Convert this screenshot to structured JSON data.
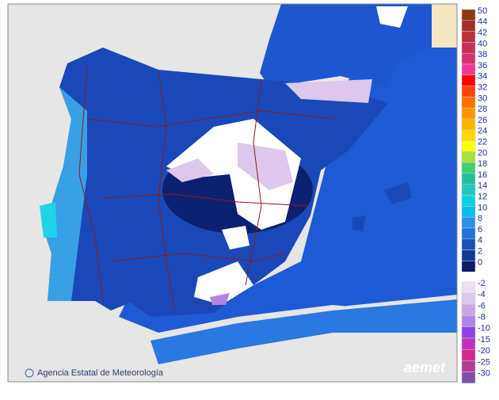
{
  "map": {
    "credit": "Agencia Estatal de Meteorología",
    "logo": "aemet"
  },
  "legend": {
    "positive": [
      {
        "label": 50,
        "color": "#8b3a10"
      },
      {
        "label": 44,
        "color": "#a33028"
      },
      {
        "label": 42,
        "color": "#b8303c"
      },
      {
        "label": 40,
        "color": "#c83058"
      },
      {
        "label": 38,
        "color": "#d83070"
      },
      {
        "label": 36,
        "color": "#f03898"
      },
      {
        "label": 34,
        "color": "#ff0000"
      },
      {
        "label": 32,
        "color": "#ff4400"
      },
      {
        "label": 30,
        "color": "#ff7000"
      },
      {
        "label": 28,
        "color": "#ff9400"
      },
      {
        "label": 26,
        "color": "#ffb400"
      },
      {
        "label": 24,
        "color": "#ffd800"
      },
      {
        "label": 22,
        "color": "#ffff00"
      },
      {
        "label": 20,
        "color": "#a8e040"
      },
      {
        "label": 18,
        "color": "#40d070"
      },
      {
        "label": 16,
        "color": "#20c0a0"
      },
      {
        "label": 14,
        "color": "#20c8c0"
      },
      {
        "label": 12,
        "color": "#00d4e0"
      },
      {
        "label": 10,
        "color": "#00c0f0"
      },
      {
        "label": 8,
        "color": "#2a90e8"
      },
      {
        "label": 6,
        "color": "#2270d8"
      },
      {
        "label": 4,
        "color": "#1850b8"
      },
      {
        "label": 2,
        "color": "#103a98"
      },
      {
        "label": 0,
        "color": "#0a1c68"
      }
    ],
    "negative": [
      {
        "label": -2,
        "color": "#ece0f4"
      },
      {
        "label": -4,
        "color": "#dcc8ec"
      },
      {
        "label": -6,
        "color": "#c8a8e4"
      },
      {
        "label": -8,
        "color": "#b084e4"
      },
      {
        "label": -10,
        "color": "#9040e0"
      },
      {
        "label": -15,
        "color": "#c030c0"
      },
      {
        "label": -20,
        "color": "#d02890"
      },
      {
        "label": -25,
        "color": "#b03c98"
      },
      {
        "label": -30,
        "color": "#8050a8"
      }
    ]
  }
}
